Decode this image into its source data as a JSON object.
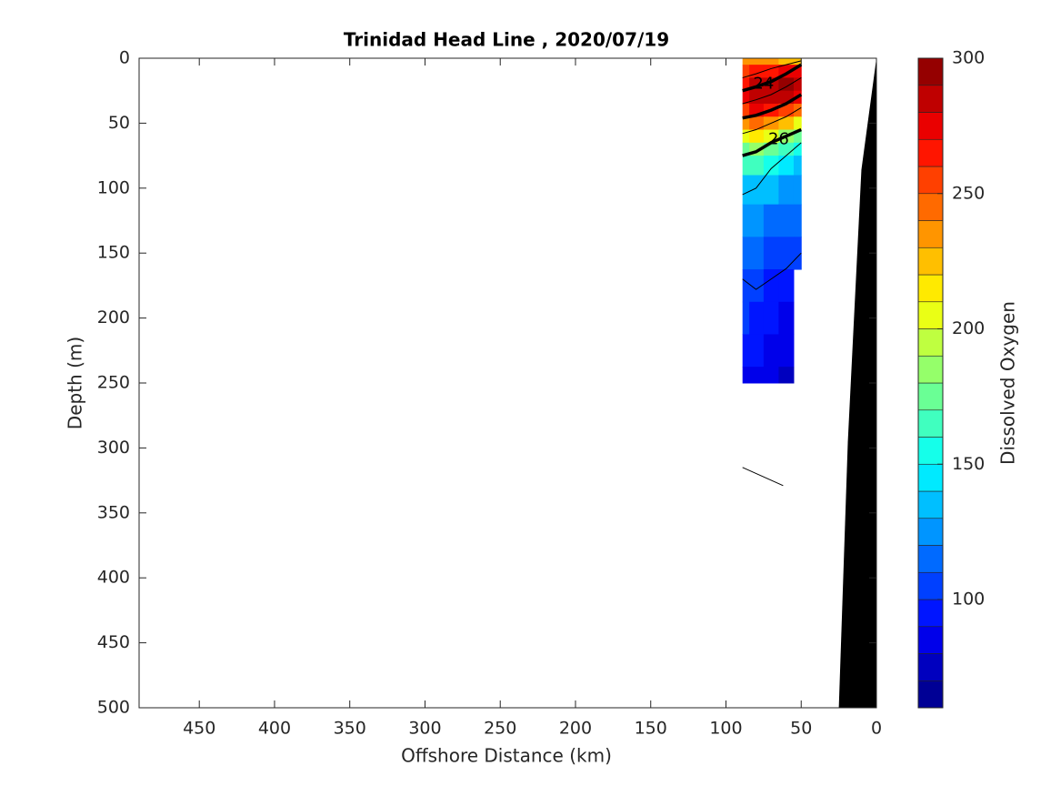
{
  "chart_data": {
    "type": "contour",
    "title": "Trinidad Head Line , 2020/07/19",
    "xlabel": "Offshore Distance (km)",
    "ylabel": "Depth (m)",
    "colorbar_label": "Dissolved Oxygen",
    "xlim": [
      490,
      0
    ],
    "ylim": [
      0,
      500
    ],
    "x_reversed": true,
    "y_reversed": true,
    "xticks": [
      450,
      400,
      350,
      300,
      250,
      200,
      150,
      100,
      50,
      0
    ],
    "yticks": [
      0,
      50,
      100,
      150,
      200,
      250,
      300,
      350,
      400,
      450,
      500
    ],
    "clim": [
      60,
      300
    ],
    "level_step": 10,
    "colormap": "jet",
    "cticks": [
      100,
      150,
      200,
      250,
      300
    ],
    "x": [
      89,
      80,
      70,
      60,
      50
    ],
    "depths": [
      0,
      10,
      20,
      30,
      40,
      50,
      60,
      70,
      80,
      100,
      125,
      150,
      175,
      200,
      225,
      250
    ],
    "z": [
      [
        230,
        235,
        230,
        225,
        220
      ],
      [
        250,
        260,
        265,
        270,
        270
      ],
      [
        265,
        280,
        285,
        290,
        285
      ],
      [
        270,
        285,
        285,
        280,
        270
      ],
      [
        255,
        270,
        265,
        255,
        240
      ],
      [
        230,
        240,
        235,
        220,
        200
      ],
      [
        200,
        210,
        200,
        185,
        170
      ],
      [
        175,
        180,
        170,
        160,
        150
      ],
      [
        160,
        160,
        155,
        145,
        135
      ],
      [
        135,
        135,
        130,
        125,
        120
      ],
      [
        125,
        120,
        118,
        115,
        110
      ],
      [
        115,
        110,
        108,
        105,
        105
      ],
      [
        105,
        100,
        98,
        95,
        null
      ],
      [
        100,
        95,
        92,
        88,
        null
      ],
      [
        95,
        90,
        86,
        82,
        null
      ],
      [
        88,
        85,
        80,
        75,
        null
      ]
    ],
    "contours": [
      {
        "x": [
          89,
          80,
          70,
          60,
          50
        ],
        "depth": [
          15,
          12,
          8,
          5,
          2
        ],
        "thick": false
      },
      {
        "x": [
          89,
          80,
          70,
          60,
          50
        ],
        "depth": [
          25,
          22,
          18,
          12,
          5
        ],
        "thick": true,
        "label": 24
      },
      {
        "x": [
          89,
          80,
          70,
          60,
          50
        ],
        "depth": [
          35,
          32,
          28,
          22,
          15
        ],
        "thick": false
      },
      {
        "x": [
          89,
          80,
          70,
          60,
          50
        ],
        "depth": [
          46,
          44,
          40,
          35,
          28
        ],
        "thick": true
      },
      {
        "x": [
          89,
          80,
          70,
          60,
          50
        ],
        "depth": [
          58,
          55,
          50,
          45,
          38
        ],
        "thick": false
      },
      {
        "x": [
          89,
          80,
          70,
          60,
          50
        ],
        "depth": [
          75,
          72,
          65,
          60,
          55
        ],
        "thick": true,
        "label": 26
      },
      {
        "x": [
          89,
          80,
          70,
          60,
          50
        ],
        "depth": [
          105,
          100,
          85,
          75,
          65
        ],
        "thick": false
      },
      {
        "x": [
          89,
          80,
          70,
          60,
          50
        ],
        "depth": [
          170,
          178,
          170,
          162,
          150
        ],
        "thick": false
      },
      {
        "x": [
          89,
          62
        ],
        "depth": [
          315,
          329
        ],
        "thick": false
      }
    ],
    "bathymetry": {
      "x": [
        0,
        10,
        19,
        25
      ],
      "depth": [
        0,
        86,
        295,
        500
      ],
      "color": "#000000"
    }
  }
}
